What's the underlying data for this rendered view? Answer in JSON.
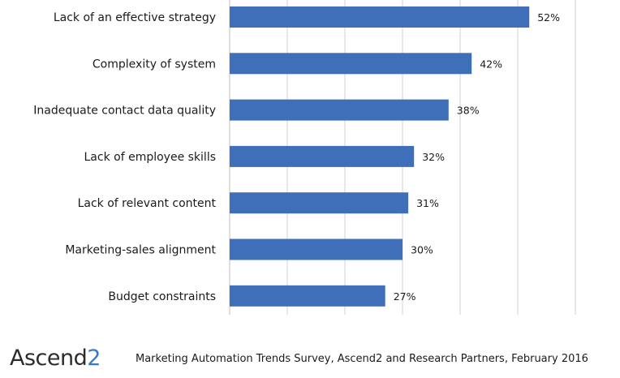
{
  "chart_data": {
    "type": "bar",
    "orientation": "horizontal",
    "categories": [
      "Lack of an effective strategy",
      "Complexity of system",
      "Inadequate contact data quality",
      "Lack of employee skills",
      "Lack of relevant content",
      "Marketing-sales alignment",
      "Budget constraints"
    ],
    "values": [
      52,
      42,
      38,
      32,
      31,
      30,
      27
    ],
    "value_labels": [
      "52%",
      "42%",
      "38%",
      "32%",
      "31%",
      "30%",
      "27%"
    ],
    "xlim": [
      0,
      60
    ],
    "grid": true,
    "bar_color": "#3f6fb8"
  },
  "footer": {
    "logo_main": "Ascend",
    "logo_accent": "2",
    "source": "Marketing Automation Trends Survey, Ascend2 and Research Partners, February 2016"
  }
}
